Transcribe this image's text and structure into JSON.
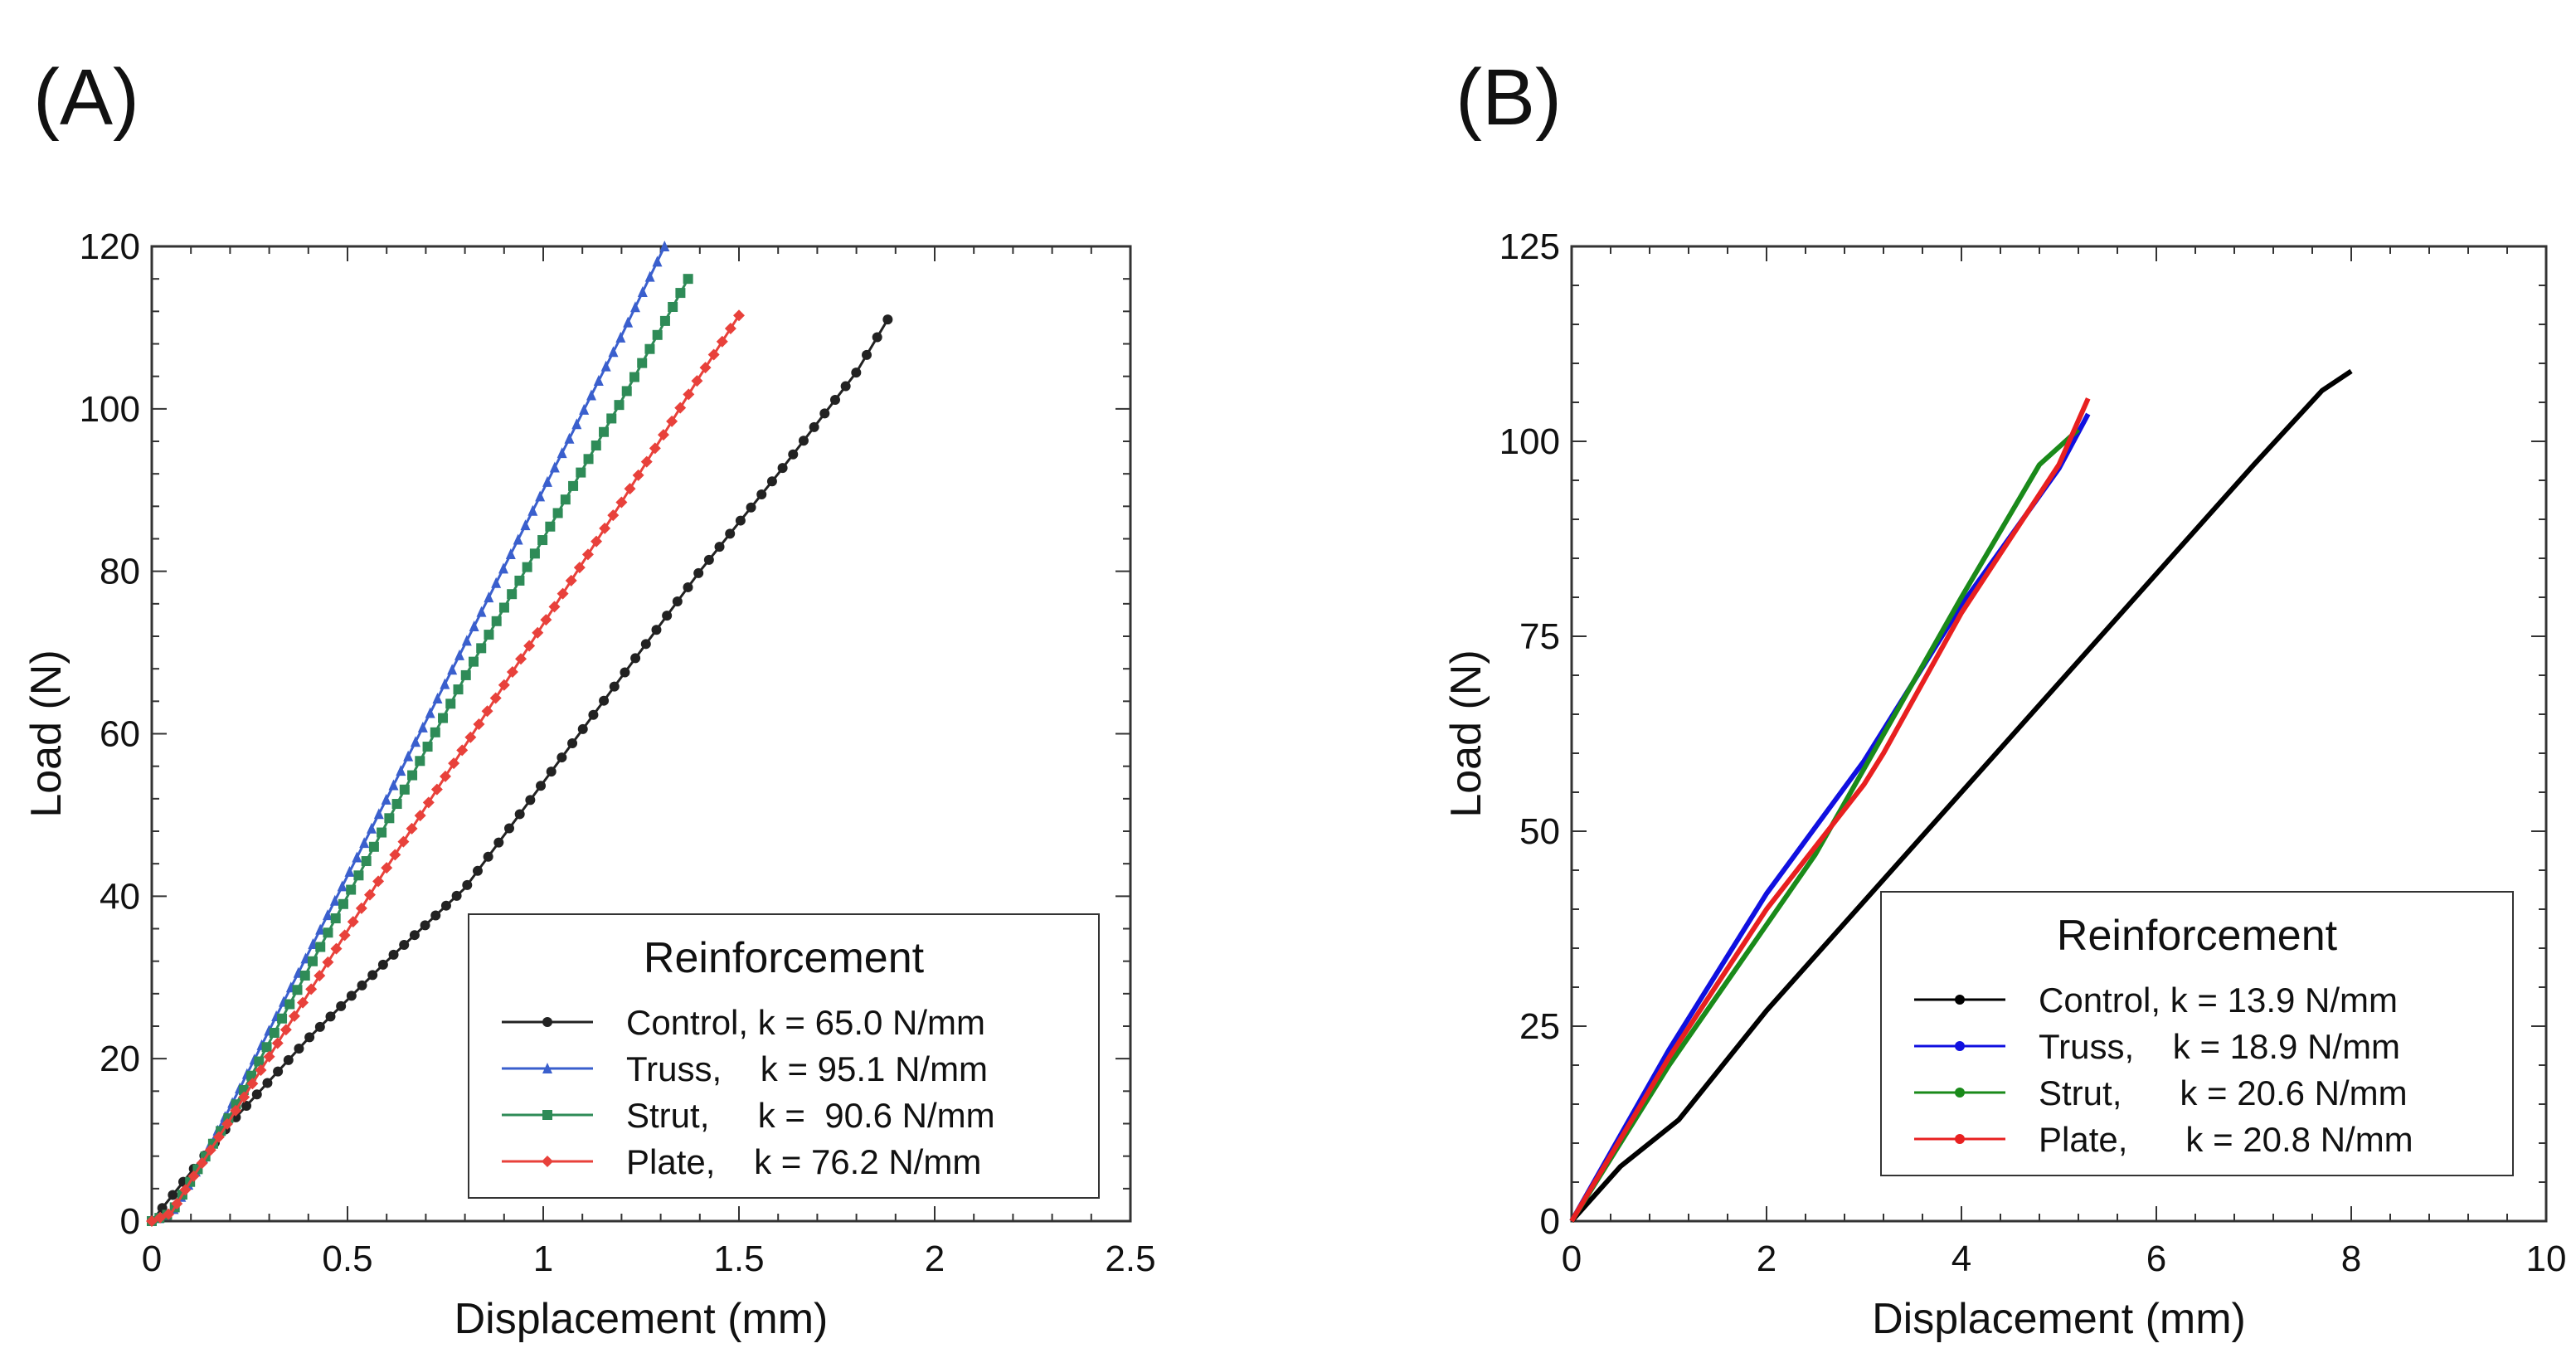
{
  "chart_data": [
    {
      "panel": "(A)",
      "type": "line",
      "xlabel": "Displacement (mm)",
      "ylabel": "Load (N)",
      "xlim": [
        0,
        2.5
      ],
      "ylim": [
        0,
        120
      ],
      "xticks": [
        0,
        0.5,
        1,
        1.5,
        2,
        2.5
      ],
      "xtick_labels": [
        "0",
        "0.5",
        "1",
        "1.5",
        "2",
        "2.5"
      ],
      "yticks": [
        0,
        20,
        40,
        60,
        80,
        100,
        120
      ],
      "ytick_labels": [
        "0",
        "20",
        "40",
        "60",
        "80",
        "100",
        "120"
      ],
      "legend": {
        "title": "Reinforcement",
        "position": "bottom-right"
      },
      "series": [
        {
          "name": "Control",
          "label": "Control, k = 65.0 N/mm",
          "color": "#222222",
          "marker": "circle",
          "x": [
            0,
            0.1,
            0.2,
            0.4,
            0.6,
            0.8,
            1.0,
            1.2,
            1.4,
            1.6,
            1.8,
            1.88
          ],
          "y": [
            0,
            6,
            12,
            22.5,
            32,
            41,
            54,
            67,
            80,
            92,
            104.5,
            111
          ]
        },
        {
          "name": "Truss",
          "label": "Truss,    k = 95.1 N/mm",
          "color": "#3a5fcd",
          "marker": "triangle",
          "x": [
            0,
            0.05,
            0.1,
            0.2,
            0.4,
            0.6,
            0.8,
            1.0,
            1.2,
            1.31
          ],
          "y": [
            0,
            1,
            5,
            14,
            33,
            52,
            71,
            90,
            109,
            120
          ]
        },
        {
          "name": "Strut",
          "label": "Strut,     k =  90.6 N/mm",
          "color": "#2e8b57",
          "marker": "square",
          "x": [
            0,
            0.05,
            0.1,
            0.2,
            0.4,
            0.6,
            0.8,
            1.0,
            1.2,
            1.37
          ],
          "y": [
            0,
            1,
            5,
            13,
            31,
            49,
            67,
            84,
            101,
            116
          ]
        },
        {
          "name": "Plate",
          "label": "Plate,    k = 76.2 N/mm",
          "color": "#e8413b",
          "marker": "diamond",
          "x": [
            0,
            0.05,
            0.1,
            0.2,
            0.4,
            0.6,
            0.8,
            1.0,
            1.2,
            1.4,
            1.5
          ],
          "y": [
            0,
            1,
            5,
            12.5,
            28,
            43.5,
            58.5,
            73.5,
            88.5,
            104,
            111.5
          ]
        }
      ]
    },
    {
      "panel": "(B)",
      "type": "line",
      "xlabel": "Displacement (mm)",
      "ylabel": "Load (N)",
      "xlim": [
        0,
        10
      ],
      "ylim": [
        0,
        125
      ],
      "xticks": [
        0,
        2,
        4,
        6,
        8,
        10
      ],
      "xtick_labels": [
        "0",
        "2",
        "4",
        "6",
        "8",
        "10"
      ],
      "yticks": [
        0,
        25,
        50,
        75,
        100,
        125
      ],
      "ytick_labels": [
        "0",
        "25",
        "50",
        "75",
        "100",
        "125"
      ],
      "legend": {
        "title": "Reinforcement",
        "position": "bottom-right"
      },
      "series": [
        {
          "name": "Control",
          "label": "Control, k = 13.9 N/mm",
          "color": "#000000",
          "x": [
            0,
            0.5,
            1.1,
            2,
            3,
            4,
            5,
            6,
            7,
            7.7,
            8.0
          ],
          "y": [
            0,
            7,
            13,
            27,
            41,
            55,
            69,
            83,
            97,
            106.5,
            109
          ]
        },
        {
          "name": "Truss",
          "label": "Truss,    k = 18.9 N/mm",
          "color": "#1010e0",
          "x": [
            0,
            1,
            2,
            3,
            4,
            5,
            5.3
          ],
          "y": [
            0,
            22,
            42,
            59,
            79,
            96.5,
            103.5
          ]
        },
        {
          "name": "Strut",
          "label": "Strut,      k = 20.6 N/mm",
          "color": "#1a8a1a",
          "x": [
            0,
            1,
            2,
            2.5,
            3,
            4,
            4.8,
            5.2
          ],
          "y": [
            0,
            20,
            38,
            47,
            58,
            80,
            97,
            101.5
          ]
        },
        {
          "name": "Plate",
          "label": "Plate,      k = 20.8 N/mm",
          "color": "#e82020",
          "x": [
            0,
            1,
            2,
            3,
            3.2,
            4,
            5,
            5.3
          ],
          "y": [
            0,
            21,
            40,
            56,
            60,
            78,
            97,
            105.5
          ]
        }
      ]
    }
  ]
}
